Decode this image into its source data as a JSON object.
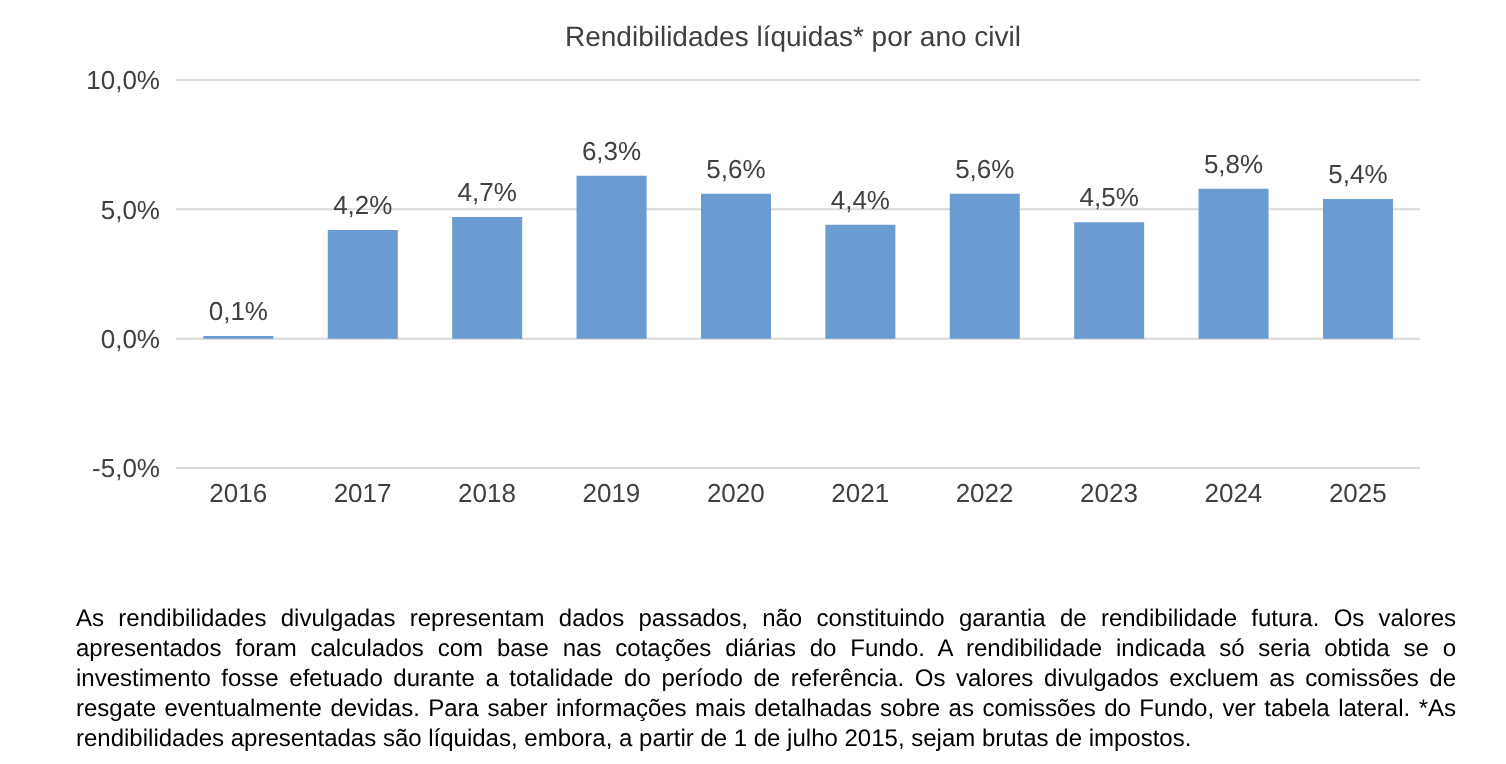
{
  "chart_data": {
    "type": "bar",
    "title": "Rendibilidades líquidas* por ano civil",
    "categories": [
      "2016",
      "2017",
      "2018",
      "2019",
      "2020",
      "2021",
      "2022",
      "2023",
      "2024",
      "2025"
    ],
    "values": [
      0.1,
      4.2,
      4.7,
      6.3,
      5.6,
      4.4,
      5.6,
      4.5,
      5.8,
      5.4
    ],
    "value_labels": [
      "0,1%",
      "4,2%",
      "4,7%",
      "6,3%",
      "5,6%",
      "4,4%",
      "5,6%",
      "4,5%",
      "5,8%",
      "5,4%"
    ],
    "color": "#6a9bd1",
    "ylim": [
      -5,
      10
    ],
    "yticks": [
      {
        "value": -5,
        "label": "-5,0%"
      },
      {
        "value": 0,
        "label": "0,0%"
      },
      {
        "value": 5,
        "label": "5,0%"
      },
      {
        "value": 10,
        "label": "10,0%"
      }
    ],
    "grid": "y",
    "annotations": [
      "As rendibilidades divulgadas representam dados passados, não constituindo garantia de rendibilidade futura. Os valores apresentados foram calculados com base nas cotações diárias do Fundo. A rendibilidade indicada só seria obtida se o investimento fosse efetuado durante a totalidade do período de referência. Os valores divulgados excluem as comissões de resgate eventualmente devidas. Para saber informações mais detalhadas sobre as comissões do Fundo, ver tabela lateral. *As rendibilidades apresentadas são líquidas, embora, a partir de 1 de julho 2015, sejam brutas de impostos."
    ]
  }
}
